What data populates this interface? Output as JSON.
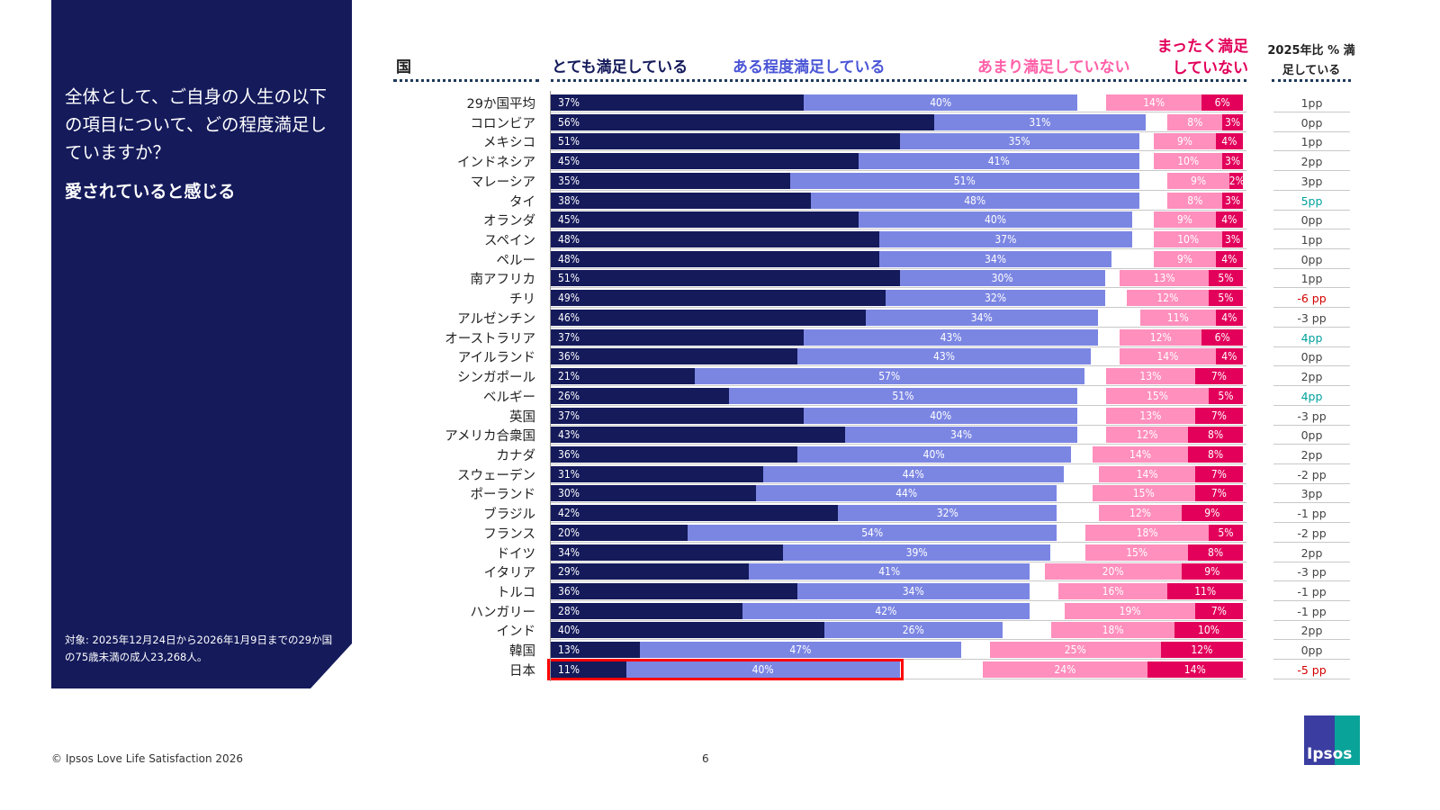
{
  "panel": {
    "question": "全体として、ご自身の人生の以下の項目について、どの程度満足していますか？",
    "subtitle": "愛されていると感じる",
    "note": "対象: 2025年12月24日から2026年1月9日までの29か国の75歳未満の成人23,268人。"
  },
  "footer": {
    "copyright": "© Ipsos Love Life Satisfaction 2026",
    "page": "6",
    "logo": "Ipsos"
  },
  "colors": {
    "very": "#141a5a",
    "somewhat": "#7b86e3",
    "not_very": "#ff8fbd",
    "not_at_all": "#e2005a",
    "positive": "#00a19c",
    "negative": "#d40000",
    "neutral": "#444444",
    "highlight": "#ff0000"
  },
  "chart_data": {
    "type": "bar",
    "layout": "diverging stacked horizontal",
    "headers": {
      "country": "国",
      "very": "とても満足している",
      "somewhat": "ある程度満足している",
      "not_very": "あまり満足していない",
      "not_at_all": "まったく満足していない",
      "change": "2025年比 % 満足している"
    },
    "categories": [
      "29か国平均",
      "コロンビア",
      "メキシコ",
      "インドネシア",
      "マレーシア",
      "タイ",
      "オランダ",
      "スペイン",
      "ペルー",
      "南アフリカ",
      "チリ",
      "アルゼンチン",
      "オーストラリア",
      "アイルランド",
      "シンガポール",
      "ベルギー",
      "英国",
      "アメリカ合衆国",
      "カナダ",
      "スウェーデン",
      "ポーランド",
      "ブラジル",
      "フランス",
      "ドイツ",
      "イタリア",
      "トルコ",
      "ハンガリー",
      "インド",
      "韓国",
      "日本"
    ],
    "series": [
      {
        "name": "とても満足している",
        "values": [
          37,
          56,
          51,
          45,
          35,
          38,
          45,
          48,
          48,
          51,
          49,
          46,
          37,
          36,
          21,
          26,
          37,
          43,
          36,
          31,
          30,
          42,
          20,
          34,
          29,
          36,
          28,
          40,
          13,
          11
        ]
      },
      {
        "name": "ある程度満足している",
        "values": [
          40,
          31,
          35,
          41,
          51,
          48,
          40,
          37,
          34,
          30,
          32,
          34,
          43,
          43,
          57,
          51,
          40,
          34,
          40,
          44,
          44,
          32,
          54,
          39,
          41,
          34,
          42,
          26,
          47,
          40
        ]
      },
      {
        "name": "あまり満足していない",
        "values": [
          14,
          8,
          9,
          10,
          9,
          8,
          9,
          10,
          9,
          13,
          12,
          11,
          12,
          14,
          13,
          15,
          13,
          12,
          14,
          14,
          15,
          12,
          18,
          15,
          20,
          16,
          19,
          18,
          25,
          24
        ]
      },
      {
        "name": "まったく満足していない",
        "values": [
          6,
          3,
          4,
          3,
          2,
          3,
          4,
          3,
          4,
          5,
          5,
          4,
          6,
          4,
          7,
          5,
          7,
          8,
          8,
          7,
          7,
          9,
          5,
          8,
          9,
          11,
          7,
          10,
          12,
          14
        ]
      }
    ],
    "change": [
      "1pp",
      "0pp",
      "1pp",
      "2pp",
      "3pp",
      "5pp",
      "0pp",
      "1pp",
      "0pp",
      "1pp",
      "-6 pp",
      "-3 pp",
      "4pp",
      "0pp",
      "2pp",
      "4pp",
      "-3 pp",
      "0pp",
      "2pp",
      "-2 pp",
      "3pp",
      "-1 pp",
      "-2 pp",
      "2pp",
      "-3 pp",
      "-1 pp",
      "-1 pp",
      "2pp",
      "0pp",
      "-5 pp"
    ],
    "change_status": [
      "n",
      "n",
      "n",
      "n",
      "n",
      "up",
      "n",
      "n",
      "n",
      "n",
      "down",
      "n",
      "up",
      "n",
      "n",
      "up",
      "n",
      "n",
      "n",
      "n",
      "n",
      "n",
      "n",
      "n",
      "n",
      "n",
      "n",
      "n",
      "n",
      "down"
    ],
    "highlighted": "日本"
  }
}
